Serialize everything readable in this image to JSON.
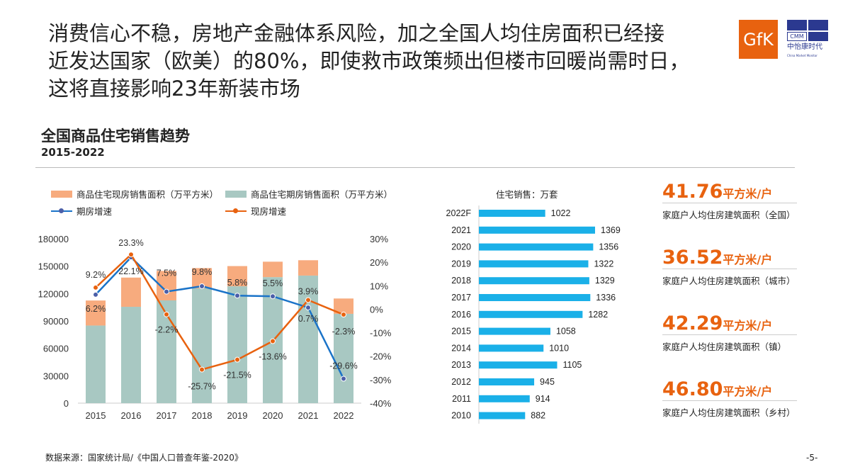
{
  "headline": [
    "消费信心不稳，房地产金融体系风险，加之全国人均住房面积已经接",
    "近发达国家（欧美）的80%，即使救市政策频出但楼市回暖尚需时日，",
    "这将直接影响23年新装市场"
  ],
  "logos": {
    "gfk": "GfK",
    "cmm": "CMM",
    "cmm_cn": "中怡康时代",
    "cmm_en": "China Market Monitor",
    "gfk_color": "#e8620f",
    "cmm_color": "#2b3990"
  },
  "chart_title": "全国商品住宅销售趋势",
  "chart_subtitle": "2015-2022",
  "chart_data": [
    {
      "type": "bar+line",
      "categories": [
        "2015",
        "2016",
        "2017",
        "2018",
        "2019",
        "2020",
        "2021",
        "2022"
      ],
      "series": [
        {
          "name": "商品住宅期房销售面积（万平方米）",
          "type": "stacked-bar",
          "color": "#a8c8c2",
          "values": [
            85000,
            105500,
            112500,
            125700,
            128000,
            138000,
            139700,
            97800
          ]
        },
        {
          "name": "商品住宅现房销售面积（万平方米）",
          "type": "stacked-bar",
          "color": "#f7ab7e",
          "values": [
            27400,
            32000,
            32300,
            22200,
            22100,
            16900,
            16800,
            16800
          ]
        },
        {
          "name": "期房增速",
          "type": "line",
          "axis": "right",
          "color": "#1a73c8",
          "values": [
            6.2,
            22.1,
            7.5,
            9.8,
            5.8,
            5.5,
            0.7,
            -29.6
          ],
          "labels": [
            "6.2%",
            "22.1%",
            "7.5%",
            "9.8%",
            "5.8%",
            "5.5%",
            "0.7%",
            "-29.6%"
          ]
        },
        {
          "name": "现房增速",
          "type": "line",
          "axis": "right",
          "color": "#e8620f",
          "values": [
            9.2,
            23.3,
            -2.2,
            -25.7,
            -21.5,
            -13.6,
            3.9,
            -2.3
          ],
          "labels": [
            "9.2%",
            "23.3%",
            "-2.2%",
            "-25.7%",
            "-21.5%",
            "-13.6%",
            "3.9%",
            "-2.3%"
          ]
        }
      ],
      "ylim": [
        0,
        180000
      ],
      "yticks": [
        "0",
        "30000",
        "60000",
        "90000",
        "120000",
        "150000",
        "180000"
      ],
      "y2lim": [
        -40,
        30
      ],
      "y2ticks": [
        "-40%",
        "-30%",
        "-20%",
        "-10%",
        "0%",
        "10%",
        "20%",
        "30%"
      ],
      "legend": "top"
    },
    {
      "type": "bar",
      "orientation": "horizontal",
      "title": "住宅销售：万套",
      "categories": [
        "2022F",
        "2021",
        "2020",
        "2019",
        "2018",
        "2017",
        "2016",
        "2015",
        "2014",
        "2013",
        "2012",
        "2011",
        "2010"
      ],
      "values": [
        1022,
        1369,
        1356,
        1322,
        1329,
        1336,
        1282,
        1058,
        1010,
        1105,
        945,
        914,
        882
      ],
      "color": "#1ab0e8",
      "xlim": [
        560,
        1400
      ]
    }
  ],
  "stats": [
    {
      "value": "41.76",
      "unit": "平方米/户",
      "label": "家庭户人均住房建筑面积（全国）"
    },
    {
      "value": "36.52",
      "unit": "平方米/户",
      "label": "家庭户人均住房建筑面积（城市）"
    },
    {
      "value": "42.29",
      "unit": "平方米/户",
      "label": "家庭户人均住房建筑面积（镇）"
    },
    {
      "value": "46.80",
      "unit": "平方米/户",
      "label": "家庭户人均住房建筑面积（乡村）"
    }
  ],
  "footer": "数据来源：国家统计局/《中国人口普查年鉴-2020》",
  "page": "-5-"
}
